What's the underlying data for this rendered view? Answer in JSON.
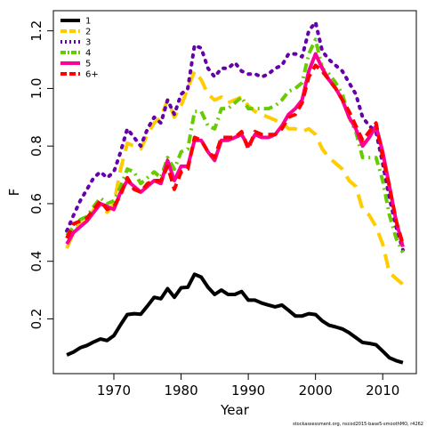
{
  "chart_data": {
    "type": "line",
    "title": "",
    "xlabel": "Year",
    "ylabel": "F",
    "xlim": [
      1961,
      2015
    ],
    "ylim": [
      0.01,
      1.27
    ],
    "xticks": [
      1970,
      1980,
      1990,
      2000,
      2010
    ],
    "yticks": [
      0.2,
      0.4,
      0.6,
      0.8,
      1.0,
      1.2
    ],
    "ytick_labels": [
      "0.2",
      "0.4",
      "0.6",
      "0.8",
      "1.0",
      "1.2"
    ],
    "legend_position": "top-left",
    "footnote": "stockassessment.org, nscod2015-base5-smoothMO, r4262",
    "x": [
      1963,
      1964,
      1965,
      1966,
      1967,
      1968,
      1969,
      1970,
      1971,
      1972,
      1973,
      1974,
      1975,
      1976,
      1977,
      1978,
      1979,
      1980,
      1981,
      1982,
      1983,
      1984,
      1985,
      1986,
      1987,
      1988,
      1989,
      1990,
      1991,
      1992,
      1993,
      1994,
      1995,
      1996,
      1997,
      1998,
      1999,
      2000,
      2001,
      2002,
      2003,
      2004,
      2005,
      2006,
      2007,
      2008,
      2009,
      2010,
      2011,
      2012,
      2013
    ],
    "series": [
      {
        "name": "1",
        "color": "#000000",
        "dash": "solid",
        "values": [
          0.075,
          0.085,
          0.1,
          0.108,
          0.12,
          0.13,
          0.125,
          0.142,
          0.18,
          0.215,
          0.218,
          0.216,
          0.245,
          0.275,
          0.27,
          0.305,
          0.275,
          0.308,
          0.31,
          0.355,
          0.345,
          0.31,
          0.285,
          0.3,
          0.285,
          0.285,
          0.295,
          0.265,
          0.265,
          0.255,
          0.248,
          0.242,
          0.248,
          0.23,
          0.21,
          0.21,
          0.218,
          0.215,
          0.193,
          0.178,
          0.172,
          0.165,
          0.152,
          0.135,
          0.118,
          0.115,
          0.11,
          0.088,
          0.065,
          0.055,
          0.048
        ]
      },
      {
        "name": "2",
        "color": "#ffcc00",
        "dash": "long",
        "values": [
          0.445,
          0.5,
          0.53,
          0.54,
          0.58,
          0.6,
          0.57,
          0.6,
          0.72,
          0.81,
          0.8,
          0.79,
          0.84,
          0.88,
          0.9,
          0.96,
          0.9,
          0.94,
          1.0,
          1.06,
          1.03,
          0.98,
          0.96,
          0.97,
          0.95,
          0.96,
          0.97,
          0.94,
          0.92,
          0.91,
          0.9,
          0.89,
          0.88,
          0.86,
          0.86,
          0.85,
          0.86,
          0.84,
          0.79,
          0.76,
          0.74,
          0.72,
          0.68,
          0.66,
          0.58,
          0.56,
          0.52,
          0.46,
          0.36,
          0.34,
          0.32
        ]
      },
      {
        "name": "3",
        "color": "#6600aa",
        "dash": "dot",
        "values": [
          0.505,
          0.56,
          0.61,
          0.65,
          0.69,
          0.71,
          0.69,
          0.71,
          0.78,
          0.86,
          0.83,
          0.8,
          0.86,
          0.9,
          0.88,
          0.96,
          0.91,
          0.98,
          1.0,
          1.15,
          1.14,
          1.07,
          1.04,
          1.07,
          1.07,
          1.09,
          1.06,
          1.05,
          1.05,
          1.04,
          1.05,
          1.07,
          1.08,
          1.12,
          1.12,
          1.11,
          1.2,
          1.23,
          1.13,
          1.1,
          1.08,
          1.06,
          1.02,
          0.98,
          0.9,
          0.87,
          0.85,
          0.74,
          0.62,
          0.52,
          0.44
        ]
      },
      {
        "name": "4",
        "color": "#66cc00",
        "dash": "dashdot",
        "values": [
          0.49,
          0.52,
          0.545,
          0.555,
          0.59,
          0.62,
          0.6,
          0.61,
          0.66,
          0.72,
          0.71,
          0.67,
          0.69,
          0.71,
          0.69,
          0.76,
          0.72,
          0.78,
          0.79,
          0.92,
          0.92,
          0.87,
          0.86,
          0.93,
          0.93,
          0.95,
          0.97,
          0.93,
          0.93,
          0.93,
          0.93,
          0.94,
          0.96,
          0.99,
          1.0,
          1.02,
          1.12,
          1.17,
          1.07,
          1.05,
          1.02,
          0.98,
          0.9,
          0.85,
          0.76,
          0.76,
          0.76,
          0.68,
          0.56,
          0.48,
          0.43
        ]
      },
      {
        "name": "5",
        "color": "#ff0099",
        "dash": "solid",
        "values": [
          0.46,
          0.5,
          0.52,
          0.54,
          0.57,
          0.6,
          0.59,
          0.58,
          0.64,
          0.68,
          0.66,
          0.64,
          0.66,
          0.68,
          0.67,
          0.75,
          0.68,
          0.73,
          0.73,
          0.82,
          0.82,
          0.78,
          0.75,
          0.82,
          0.82,
          0.83,
          0.84,
          0.8,
          0.84,
          0.83,
          0.83,
          0.84,
          0.87,
          0.91,
          0.93,
          0.96,
          1.06,
          1.12,
          1.07,
          1.03,
          1.0,
          0.96,
          0.9,
          0.86,
          0.8,
          0.83,
          0.87,
          0.78,
          0.66,
          0.54,
          0.45
        ]
      },
      {
        "name": "6+",
        "color": "#ff0000",
        "dash": "dash",
        "values": [
          0.48,
          0.53,
          0.54,
          0.55,
          0.58,
          0.61,
          0.58,
          0.59,
          0.63,
          0.69,
          0.65,
          0.64,
          0.67,
          0.68,
          0.68,
          0.73,
          0.65,
          0.71,
          0.72,
          0.83,
          0.82,
          0.78,
          0.76,
          0.83,
          0.83,
          0.83,
          0.85,
          0.79,
          0.85,
          0.84,
          0.84,
          0.84,
          0.86,
          0.9,
          0.91,
          0.95,
          1.04,
          1.08,
          1.06,
          1.03,
          1.0,
          0.96,
          0.92,
          0.87,
          0.82,
          0.85,
          0.88,
          0.76,
          0.66,
          0.54,
          0.46
        ]
      }
    ]
  }
}
